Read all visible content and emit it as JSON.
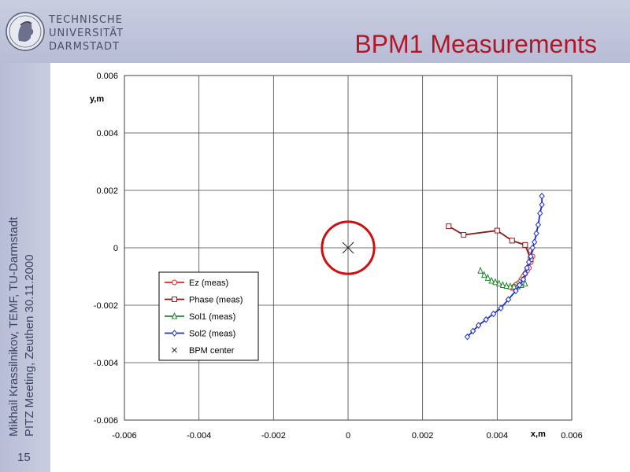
{
  "header": {
    "university_lines": [
      "TECHNISCHE",
      "UNIVERSITÄT",
      "DARMSTADT"
    ],
    "title": "BPM1 Measurements"
  },
  "sidebar": {
    "author_line": "Mikhail Krassilnikov, TEMF, TU-Darmstadt",
    "meeting_line": "PITZ Meeting, Zeuthen 30.11.2000",
    "slide_number": "15"
  },
  "colors": {
    "header_band": "#c9cde0",
    "title": "#b0182a",
    "circle": "#cc1111",
    "Ez": "#d22a2a",
    "Phase": "#8b1a1a",
    "Sol1": "#1f8a2a",
    "Sol2": "#1c2fd0",
    "BPM": "#222222"
  },
  "chart_data": {
    "type": "scatter",
    "xlabel": "x,m",
    "ylabel": "y,m",
    "xlim": [
      -0.006,
      0.006
    ],
    "ylim": [
      -0.006,
      0.006
    ],
    "xticks": [
      "-0.006",
      "-0.004",
      "-0.002",
      "0",
      "0.002",
      "0.004",
      "0.006"
    ],
    "yticks": [
      "0.006",
      "0.004",
      "0.002",
      "0",
      "-0.002",
      "-0.004",
      "-0.006"
    ],
    "grid": true,
    "legend_position": "lower-left",
    "series": [
      {
        "name": "Ez (meas)",
        "marker": "circle",
        "x": [
          0.0049,
          0.00495,
          0.0049,
          0.00485,
          0.0048,
          0.00475,
          0.0047,
          0.00465,
          0.0046,
          0.00455,
          0.0045,
          0.00445,
          0.0044
        ],
        "y": [
          -0.0001,
          -0.0003,
          -0.0005,
          -0.0007,
          -0.0008,
          -0.0009,
          -0.001,
          -0.0011,
          -0.0012,
          -0.00125,
          -0.0013,
          -0.00135,
          -0.0014
        ]
      },
      {
        "name": "Phase (meas)",
        "marker": "square",
        "x": [
          0.0027,
          0.0031,
          0.004,
          0.0044,
          0.00475,
          0.0049
        ],
        "y": [
          0.00075,
          0.00045,
          0.0006,
          0.00025,
          0.0001,
          -0.0004
        ]
      },
      {
        "name": "Sol1 (meas)",
        "marker": "triangle",
        "x": [
          0.00355,
          0.00365,
          0.00375,
          0.00385,
          0.00395,
          0.00405,
          0.00415,
          0.00425,
          0.00435,
          0.00445,
          0.00455,
          0.00465,
          0.00475
        ],
        "y": [
          -0.0008,
          -0.00095,
          -0.00105,
          -0.00115,
          -0.0012,
          -0.00125,
          -0.0013,
          -0.00133,
          -0.00135,
          -0.00135,
          -0.00135,
          -0.0013,
          -0.00125
        ]
      },
      {
        "name": "Sol2 (meas)",
        "marker": "diamond",
        "x": [
          0.0032,
          0.00335,
          0.0035,
          0.0037,
          0.0039,
          0.0041,
          0.0043,
          0.0045,
          0.0046,
          0.0047,
          0.00475,
          0.0048,
          0.00485,
          0.0049,
          0.00495,
          0.005,
          0.00505,
          0.0051,
          0.00515,
          0.0052,
          0.0052
        ],
        "y": [
          -0.0031,
          -0.0029,
          -0.0027,
          -0.0025,
          -0.0023,
          -0.0021,
          -0.0018,
          -0.0015,
          -0.0013,
          -0.0011,
          -0.0009,
          -0.0007,
          -0.0005,
          -0.0003,
          0.0,
          0.0002,
          0.0005,
          0.0008,
          0.0012,
          0.0015,
          0.0018
        ]
      },
      {
        "name": "BPM center",
        "marker": "x",
        "x": [
          0.0
        ],
        "y": [
          0.0
        ]
      }
    ],
    "annotations": [
      {
        "type": "circle",
        "center": [
          0.0,
          0.0
        ],
        "radius": 0.0007
      }
    ]
  }
}
